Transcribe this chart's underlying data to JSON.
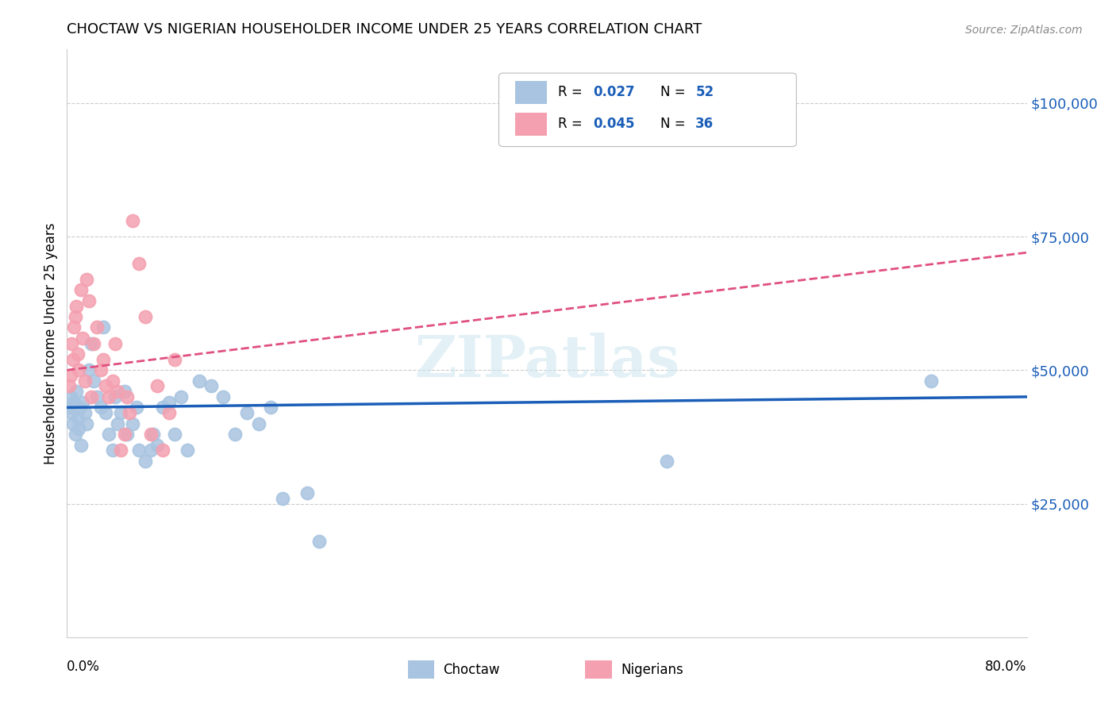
{
  "title": "CHOCTAW VS NIGERIAN HOUSEHOLDER INCOME UNDER 25 YEARS CORRELATION CHART",
  "source": "Source: ZipAtlas.com",
  "ylabel": "Householder Income Under 25 years",
  "ytick_labels": [
    "$25,000",
    "$50,000",
    "$75,000",
    "$100,000"
  ],
  "ytick_values": [
    25000,
    50000,
    75000,
    100000
  ],
  "ylim": [
    0,
    110000
  ],
  "xlim": [
    0.0,
    0.8
  ],
  "watermark": "ZIPatlas",
  "choctaw_color": "#a8c4e0",
  "nigerian_color": "#f4a0b0",
  "choctaw_line_color": "#1a5eb8",
  "nigerian_line_color": "#e05080",
  "background_color": "#ffffff",
  "grid_color": "#cccccc",
  "choctaw_x": [
    0.002,
    0.003,
    0.004,
    0.005,
    0.006,
    0.007,
    0.008,
    0.009,
    0.01,
    0.011,
    0.012,
    0.013,
    0.015,
    0.016,
    0.018,
    0.02,
    0.022,
    0.025,
    0.028,
    0.03,
    0.032,
    0.035,
    0.038,
    0.04,
    0.042,
    0.045,
    0.048,
    0.05,
    0.055,
    0.058,
    0.06,
    0.065,
    0.07,
    0.072,
    0.075,
    0.08,
    0.085,
    0.09,
    0.095,
    0.1,
    0.11,
    0.12,
    0.13,
    0.14,
    0.15,
    0.16,
    0.17,
    0.18,
    0.2,
    0.21,
    0.5,
    0.72
  ],
  "choctaw_y": [
    43000,
    45000,
    42000,
    40000,
    44000,
    38000,
    46000,
    41000,
    39000,
    43000,
    36000,
    44000,
    42000,
    40000,
    50000,
    55000,
    48000,
    45000,
    43000,
    58000,
    42000,
    38000,
    35000,
    45000,
    40000,
    42000,
    46000,
    38000,
    40000,
    43000,
    35000,
    33000,
    35000,
    38000,
    36000,
    43000,
    44000,
    38000,
    45000,
    35000,
    48000,
    47000,
    45000,
    38000,
    42000,
    40000,
    43000,
    26000,
    27000,
    18000,
    33000,
    48000
  ],
  "nigerian_x": [
    0.002,
    0.003,
    0.004,
    0.005,
    0.006,
    0.007,
    0.008,
    0.009,
    0.01,
    0.012,
    0.013,
    0.015,
    0.016,
    0.018,
    0.02,
    0.022,
    0.025,
    0.028,
    0.03,
    0.032,
    0.035,
    0.038,
    0.04,
    0.042,
    0.045,
    0.048,
    0.05,
    0.052,
    0.055,
    0.06,
    0.065,
    0.07,
    0.075,
    0.08,
    0.085,
    0.09
  ],
  "nigerian_y": [
    47000,
    49000,
    55000,
    52000,
    58000,
    60000,
    62000,
    53000,
    50000,
    65000,
    56000,
    48000,
    67000,
    63000,
    45000,
    55000,
    58000,
    50000,
    52000,
    47000,
    45000,
    48000,
    55000,
    46000,
    35000,
    38000,
    45000,
    42000,
    78000,
    70000,
    60000,
    38000,
    47000,
    35000,
    42000,
    52000
  ],
  "choctaw_line_y0": 43000,
  "choctaw_line_y1": 45000,
  "nigerian_line_y0": 50000,
  "nigerian_line_y1": 72000
}
